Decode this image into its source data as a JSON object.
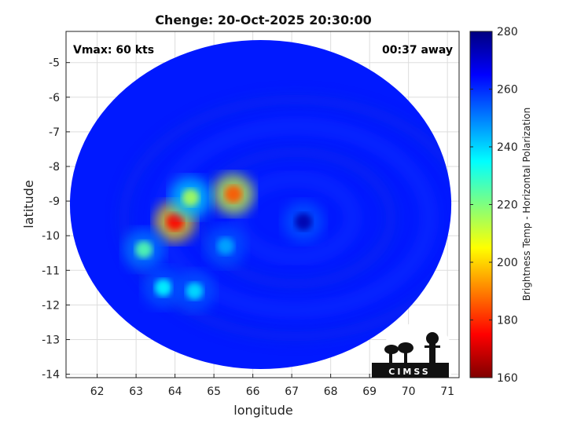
{
  "chart_data": {
    "type": "heatmap",
    "title": "Chenge: 20-Oct-2025 20:30:00",
    "xlabel": "longitude",
    "ylabel": "latitude",
    "xlim": [
      61.2,
      71.3
    ],
    "ylim": [
      -14.1,
      -4.1
    ],
    "xticks": [
      62,
      63,
      64,
      65,
      66,
      67,
      68,
      69,
      70,
      71
    ],
    "yticks": [
      -5,
      -6,
      -7,
      -8,
      -9,
      -10,
      -11,
      -12,
      -13,
      -14
    ],
    "grid": true,
    "annotations": {
      "vmax": "Vmax: 60 kts",
      "away": "00:37 away"
    },
    "colorbar": {
      "label": "Brightness Temp - Horizontal Polarization",
      "range": [
        160,
        280
      ],
      "ticks": [
        280,
        260,
        240,
        220,
        200,
        180,
        160
      ],
      "colormap": "jet",
      "colors": [
        "#7f0000",
        "#ff0000",
        "#ff7f00",
        "#ffff00",
        "#7fff7f",
        "#00ffff",
        "#007fff",
        "#0000ff",
        "#00007f"
      ]
    },
    "field": {
      "background_value": 262,
      "swath_center": [
        66.2,
        -9.1
      ],
      "swath_radius_deg": [
        4.9,
        4.75
      ],
      "storm_center": [
        67.3,
        -9.6
      ],
      "features": [
        {
          "lon": 64.0,
          "lat": -9.6,
          "value": 175
        },
        {
          "lon": 65.5,
          "lat": -8.8,
          "value": 185
        },
        {
          "lon": 64.4,
          "lat": -8.9,
          "value": 215
        },
        {
          "lon": 63.2,
          "lat": -10.4,
          "value": 225
        },
        {
          "lon": 63.7,
          "lat": -11.5,
          "value": 235
        },
        {
          "lon": 64.5,
          "lat": -11.6,
          "value": 238
        },
        {
          "lon": 65.3,
          "lat": -10.3,
          "value": 245
        },
        {
          "lon": 67.3,
          "lat": -9.6,
          "value": 275
        }
      ]
    },
    "logo_text": "CIMSS"
  }
}
